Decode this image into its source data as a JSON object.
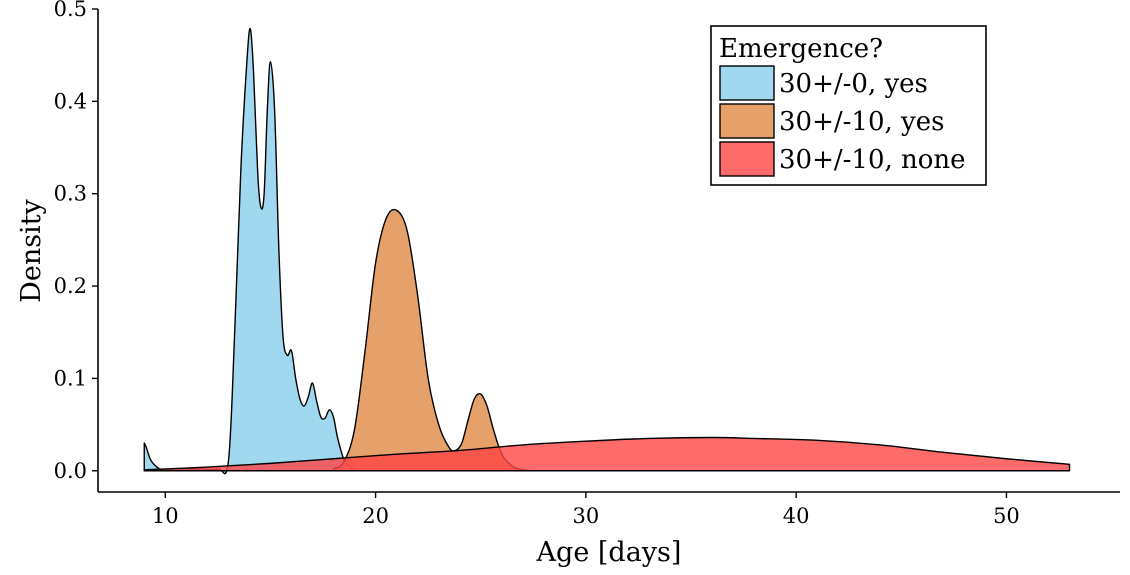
{
  "chart_data": {
    "type": "area",
    "title": "",
    "xlabel": "Age [days]",
    "ylabel": "Density",
    "xlim": [
      6.8,
      55.4
    ],
    "ylim": [
      -0.023,
      0.5
    ],
    "x_ticks": [
      10,
      20,
      30,
      40,
      50
    ],
    "y_ticks": [
      0.0,
      0.1,
      0.2,
      0.3,
      0.4,
      0.5
    ],
    "x_tick_labels": [
      "10",
      "20",
      "30",
      "40",
      "50"
    ],
    "y_tick_labels": [
      "0.0",
      "0.1",
      "0.2",
      "0.3",
      "0.4",
      "0.5"
    ],
    "grid": false,
    "legend_position": "top-right",
    "legend_title": "Emergence?",
    "series": [
      {
        "name": "30+/-0, yes",
        "color": "#87CEEB",
        "x": [
          9,
          9.1,
          9.3,
          9.6,
          9.9,
          10.5,
          11.5,
          12.5,
          13.0,
          13.3,
          13.6,
          13.9,
          14.05,
          14.2,
          14.4,
          14.55,
          14.7,
          14.85,
          15.0,
          15.2,
          15.4,
          15.6,
          15.8,
          16.0,
          16.2,
          16.4,
          16.6,
          16.8,
          17.0,
          17.2,
          17.4,
          17.6,
          17.8,
          18.0,
          18.2,
          18.5,
          18.8,
          19.0
        ],
        "y": [
          0.03,
          0.025,
          0.012,
          0.004,
          0.001,
          0.002,
          0.002,
          0.002,
          0.01,
          0.15,
          0.33,
          0.45,
          0.478,
          0.43,
          0.32,
          0.285,
          0.3,
          0.39,
          0.443,
          0.39,
          0.24,
          0.145,
          0.125,
          0.13,
          0.1,
          0.078,
          0.07,
          0.08,
          0.095,
          0.075,
          0.058,
          0.057,
          0.066,
          0.058,
          0.035,
          0.012,
          0.004,
          0.001
        ]
      },
      {
        "name": "30+/-10, yes",
        "color": "#E08A45",
        "x": [
          18.0,
          18.5,
          19.0,
          19.5,
          20.0,
          20.5,
          21.0,
          21.5,
          22.0,
          22.5,
          23.0,
          23.5,
          23.8,
          24.1,
          24.4,
          24.7,
          25.0,
          25.3,
          25.6,
          26.0,
          26.5,
          27.0,
          27.5
        ],
        "y": [
          0.002,
          0.01,
          0.045,
          0.13,
          0.225,
          0.273,
          0.282,
          0.26,
          0.19,
          0.1,
          0.05,
          0.025,
          0.022,
          0.03,
          0.055,
          0.078,
          0.083,
          0.07,
          0.045,
          0.018,
          0.005,
          0.001,
          0.0
        ]
      },
      {
        "name": "30+/-10, none",
        "color": "#FF4545",
        "x": [
          9,
          12,
          15,
          18,
          21,
          24,
          27,
          30,
          33,
          36,
          38,
          41,
          44,
          47,
          50,
          53
        ],
        "y": [
          0.001,
          0.004,
          0.008,
          0.013,
          0.018,
          0.022,
          0.028,
          0.032,
          0.035,
          0.036,
          0.035,
          0.033,
          0.028,
          0.02,
          0.013,
          0.007
        ]
      }
    ]
  }
}
